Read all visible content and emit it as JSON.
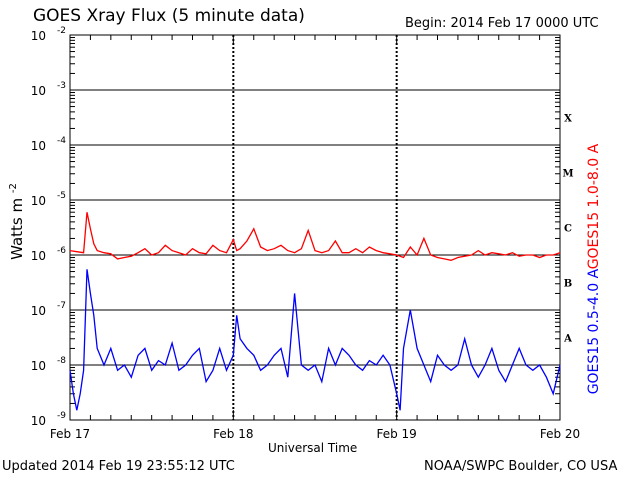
{
  "header": {
    "title": "GOES Xray Flux (5 minute data)",
    "begin": "Begin:  2014 Feb 17 0000 UTC"
  },
  "footer": {
    "updated": "Updated 2014 Feb 19 23:55:12 UTC",
    "credit": "NOAA/SWPC Boulder, CO USA"
  },
  "chart_data": {
    "type": "line",
    "title": "GOES Xray Flux (5 minute data)",
    "xlabel": "Universal Time",
    "ylabel": "Watts m-2",
    "ylabel_base": "Watts m",
    "ylabel_exp": "-2",
    "yscale": "log",
    "ylim": [
      1e-09,
      0.01
    ],
    "xlim": [
      0,
      72
    ],
    "x_unit": "hours since 2014 Feb 17 0000 UTC",
    "x_ticks": [
      {
        "x": 0,
        "label": "Feb 17"
      },
      {
        "x": 24,
        "label": "Feb 18"
      },
      {
        "x": 48,
        "label": "Feb 19"
      },
      {
        "x": 72,
        "label": "Feb 20"
      }
    ],
    "y_ticks": [
      {
        "exp": -9,
        "label": "10",
        "sup": "-9"
      },
      {
        "exp": -8,
        "label": "10",
        "sup": "-8"
      },
      {
        "exp": -7,
        "label": "10",
        "sup": "-7"
      },
      {
        "exp": -6,
        "label": "10",
        "sup": "-6"
      },
      {
        "exp": -5,
        "label": "10",
        "sup": "-5"
      },
      {
        "exp": -4,
        "label": "10",
        "sup": "-4"
      },
      {
        "exp": -3,
        "label": "10",
        "sup": "-3"
      },
      {
        "exp": -2,
        "label": "10",
        "sup": "-2"
      }
    ],
    "flare_classes": [
      {
        "label": "A",
        "level": 1e-08
      },
      {
        "label": "B",
        "level": 1e-07
      },
      {
        "label": "C",
        "level": 1e-06
      },
      {
        "label": "M",
        "level": 1e-05
      },
      {
        "label": "X",
        "level": 0.0001
      }
    ],
    "series": [
      {
        "name": "GOES15 1.0-8.0 A",
        "color": "#ff0000",
        "x": [
          0,
          1,
          2,
          2.5,
          3,
          3.5,
          4,
          5,
          6,
          7,
          8,
          9,
          10,
          11,
          12,
          13,
          14,
          15,
          16,
          17,
          18,
          19,
          20,
          21,
          22,
          23,
          24,
          24.5,
          25,
          26,
          27,
          28,
          29,
          30,
          31,
          32,
          33,
          34,
          35,
          36,
          37,
          38,
          39,
          40,
          41,
          42,
          43,
          44,
          45,
          46,
          47,
          48,
          49,
          50,
          51,
          52,
          53,
          54,
          55,
          56,
          57,
          58,
          59,
          60,
          61,
          62,
          63,
          64,
          65,
          66,
          67,
          68,
          69,
          70,
          71,
          72
        ],
        "y": [
          1.2e-06,
          1.15e-06,
          1.1e-06,
          6e-06,
          3e-06,
          1.6e-06,
          1.2e-06,
          1.1e-06,
          1.05e-06,
          8.5e-07,
          9e-07,
          9.5e-07,
          1.1e-06,
          1.3e-06,
          1e-06,
          1.1e-06,
          1.5e-06,
          1.2e-06,
          1.1e-06,
          1e-06,
          1.3e-06,
          1.1e-06,
          1.05e-06,
          1.5e-06,
          1.2e-06,
          1.1e-06,
          1.9e-06,
          1.2e-06,
          1.3e-06,
          1.8e-06,
          3e-06,
          1.4e-06,
          1.2e-06,
          1.3e-06,
          1.5e-06,
          1.2e-06,
          1.1e-06,
          1.3e-06,
          2.8e-06,
          1.2e-06,
          1.1e-06,
          1.2e-06,
          1.8e-06,
          1.1e-06,
          1.1e-06,
          1.3e-06,
          1.1e-06,
          1.4e-06,
          1.2e-06,
          1.1e-06,
          1.05e-06,
          1e-06,
          9e-07,
          1.4e-06,
          1e-06,
          2e-06,
          1e-06,
          9e-07,
          8.5e-07,
          8e-07,
          9e-07,
          9.5e-07,
          1e-06,
          1.2e-06,
          1e-06,
          1.1e-06,
          1.05e-06,
          1e-06,
          1.1e-06,
          9.5e-07,
          1e-06,
          1e-06,
          9e-07,
          1e-06,
          1e-06,
          1.1e-06
        ]
      },
      {
        "name": "GOES15 0.5-4.0 A",
        "color": "#0000ff",
        "x": [
          0,
          0.5,
          1,
          1.5,
          2,
          2.5,
          3,
          3.5,
          4,
          5,
          6,
          7,
          8,
          9,
          10,
          11,
          12,
          13,
          14,
          15,
          16,
          17,
          18,
          19,
          20,
          21,
          22,
          23,
          24,
          24.5,
          25,
          26,
          27,
          28,
          29,
          30,
          31,
          32,
          33,
          34,
          35,
          36,
          37,
          38,
          39,
          40,
          41,
          42,
          43,
          44,
          45,
          46,
          47,
          48,
          48.5,
          49,
          50,
          51,
          52,
          53,
          54,
          55,
          56,
          57,
          58,
          59,
          60,
          61,
          62,
          63,
          64,
          65,
          66,
          67,
          68,
          69,
          70,
          71,
          72
        ],
        "y": [
          8e-09,
          3e-09,
          1.5e-09,
          3e-09,
          8e-09,
          5.5e-07,
          2e-07,
          8e-08,
          2e-08,
          1e-08,
          2e-08,
          8e-09,
          1e-08,
          6e-09,
          1.5e-08,
          2e-08,
          8e-09,
          1.2e-08,
          1e-08,
          2.5e-08,
          8e-09,
          1e-08,
          1.5e-08,
          2e-08,
          5e-09,
          8e-09,
          2e-08,
          8e-09,
          1.5e-08,
          8e-08,
          3e-08,
          2e-08,
          1.5e-08,
          8e-09,
          1e-08,
          1.5e-08,
          2e-08,
          6e-09,
          2e-07,
          1e-08,
          8e-09,
          1e-08,
          5e-09,
          2e-08,
          1e-08,
          2e-08,
          1.5e-08,
          1e-08,
          8e-09,
          1.2e-08,
          1e-08,
          1.5e-08,
          1e-08,
          3e-09,
          1.5e-09,
          2e-08,
          1e-07,
          2e-08,
          1e-08,
          5e-09,
          1.5e-08,
          1e-08,
          8e-09,
          1e-08,
          3e-08,
          1e-08,
          6e-09,
          1e-08,
          2e-08,
          8e-09,
          5e-09,
          1e-08,
          2e-08,
          1e-08,
          8e-09,
          1e-08,
          6e-09,
          3e-09,
          1e-08
        ]
      }
    ]
  }
}
